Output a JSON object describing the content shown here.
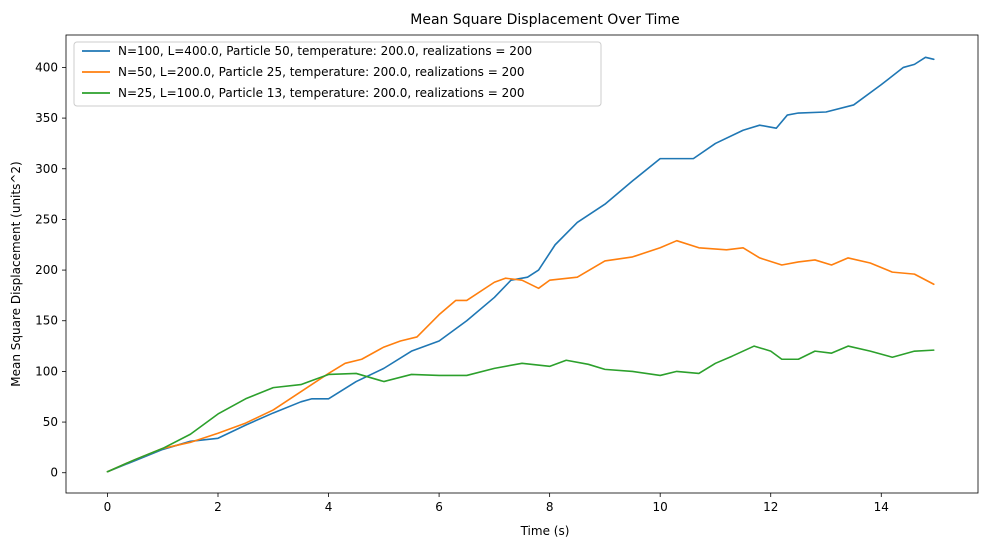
{
  "chart_data": {
    "type": "line",
    "title": "Mean Square Displacement Over Time",
    "xlabel": "Time (s)",
    "ylabel": "Mean Square Displacement (units^2)",
    "xlim": [
      -0.75,
      15.75
    ],
    "ylim": [
      -20,
      432
    ],
    "xticks": [
      0,
      2,
      4,
      6,
      8,
      10,
      12,
      14
    ],
    "yticks": [
      0,
      50,
      100,
      150,
      200,
      250,
      300,
      350,
      400
    ],
    "grid": false,
    "legend_position": "top-left",
    "series": [
      {
        "name": "N=100, L=400.0, Particle 50, temperature: 200.0, realizations = 200",
        "color": "#1f77b4",
        "x": [
          0,
          0.5,
          1,
          1.5,
          2,
          2.5,
          3,
          3.5,
          3.7,
          4,
          4.5,
          5,
          5.5,
          6,
          6.5,
          7,
          7.3,
          7.6,
          7.8,
          8.1,
          8.5,
          9,
          9.5,
          10,
          10.2,
          10.6,
          11,
          11.5,
          11.8,
          12.1,
          12.3,
          12.5,
          13,
          13.5,
          14,
          14.4,
          14.6,
          14.8,
          14.95
        ],
        "y": [
          1,
          12,
          23,
          31,
          34,
          47,
          59,
          70,
          73,
          73,
          90,
          103,
          120,
          130,
          150,
          173,
          190,
          193,
          200,
          225,
          247,
          265,
          288,
          310,
          310,
          310,
          325,
          338,
          343,
          340,
          353,
          355,
          356,
          363,
          383,
          400,
          403,
          410,
          408
        ]
      },
      {
        "name": "N=50, L=200.0, Particle 25, temperature: 200.0, realizations = 200",
        "color": "#ff7f0e",
        "x": [
          0,
          0.5,
          1,
          1.5,
          2,
          2.5,
          3,
          3.5,
          4,
          4.3,
          4.6,
          5,
          5.3,
          5.6,
          6,
          6.3,
          6.5,
          7,
          7.2,
          7.5,
          7.8,
          8,
          8.5,
          9,
          9.5,
          10,
          10.3,
          10.7,
          11.2,
          11.5,
          11.8,
          12.2,
          12.5,
          12.8,
          13.1,
          13.4,
          13.8,
          14.2,
          14.6,
          14.95
        ],
        "y": [
          1,
          13,
          24,
          30,
          39,
          49,
          62,
          80,
          98,
          108,
          112,
          124,
          130,
          134,
          156,
          170,
          170,
          188,
          192,
          190,
          182,
          190,
          193,
          209,
          213,
          222,
          229,
          222,
          220,
          222,
          212,
          205,
          208,
          210,
          205,
          212,
          207,
          198,
          196,
          186
        ]
      },
      {
        "name": "N=25, L=100.0, Particle 13, temperature: 200.0, realizations = 200",
        "color": "#2ca02c",
        "x": [
          0,
          0.5,
          1,
          1.5,
          2,
          2.5,
          3,
          3.5,
          4,
          4.5,
          5,
          5.5,
          6,
          6.5,
          7,
          7.5,
          8,
          8.3,
          8.7,
          9,
          9.5,
          10,
          10.3,
          10.7,
          11,
          11.3,
          11.7,
          12,
          12.2,
          12.5,
          12.8,
          13.1,
          13.4,
          13.8,
          14.2,
          14.6,
          14.95
        ],
        "y": [
          1,
          13,
          24,
          38,
          58,
          73,
          84,
          87,
          97,
          98,
          90,
          97,
          96,
          96,
          103,
          108,
          105,
          111,
          107,
          102,
          100,
          96,
          100,
          98,
          108,
          115,
          125,
          120,
          112,
          112,
          120,
          118,
          125,
          120,
          114,
          120,
          121
        ]
      }
    ]
  }
}
